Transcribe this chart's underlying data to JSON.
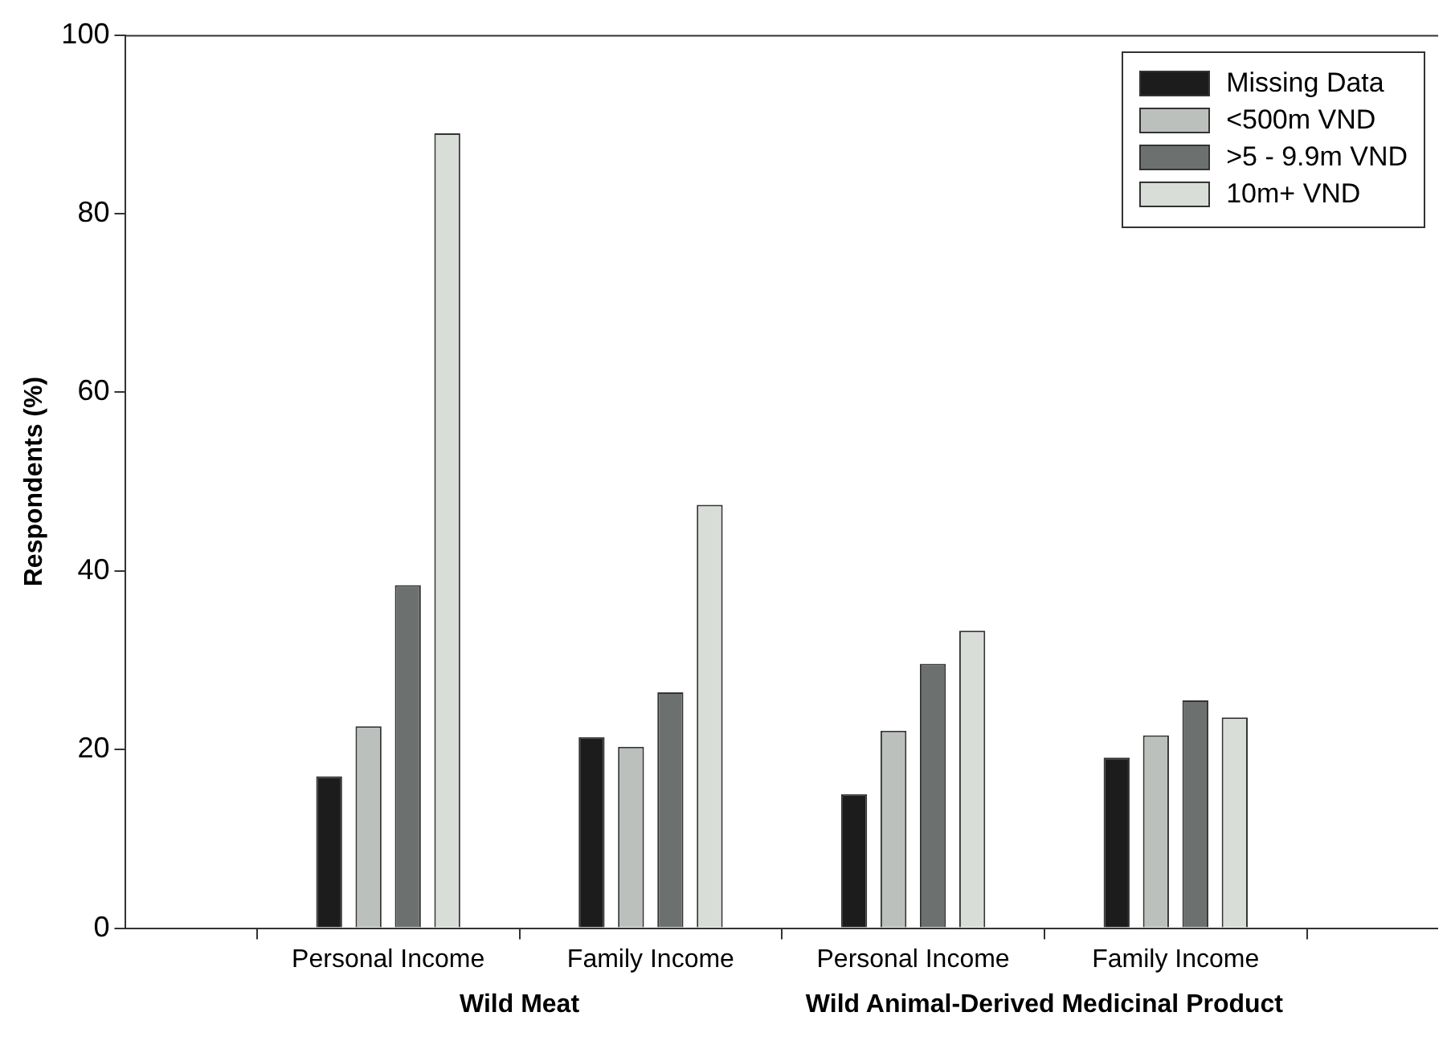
{
  "chart_data": {
    "type": "bar",
    "ylabel": "Respondents (%)",
    "categories": [
      "Personal Income",
      "Family Income",
      "Personal Income",
      "Family Income"
    ],
    "series": [
      {
        "name": "Missing Data",
        "color": "#1c1c1c",
        "values": [
          17,
          21.4,
          15,
          19.1
        ]
      },
      {
        "name": "<500m VND",
        "color": "#bcc0bc",
        "values": [
          22.6,
          20.3,
          22.1,
          21.6
        ]
      },
      {
        "name": ">5 - 9.9m VND",
        "color": "#6c7170",
        "values": [
          38.4,
          26.4,
          29.6,
          25.5
        ]
      },
      {
        "name": "10m+ VND",
        "color": "#d9ddd8",
        "values": [
          89,
          47.4,
          33.3,
          23.6
        ]
      }
    ],
    "ylim": [
      0,
      100
    ],
    "yticks": [
      0,
      20,
      40,
      60,
      80,
      100
    ],
    "grid": false,
    "legend": "top right",
    "annotations": [
      "Wild Meat",
      "Wild Animal-Derived Medicinal Product"
    ]
  }
}
